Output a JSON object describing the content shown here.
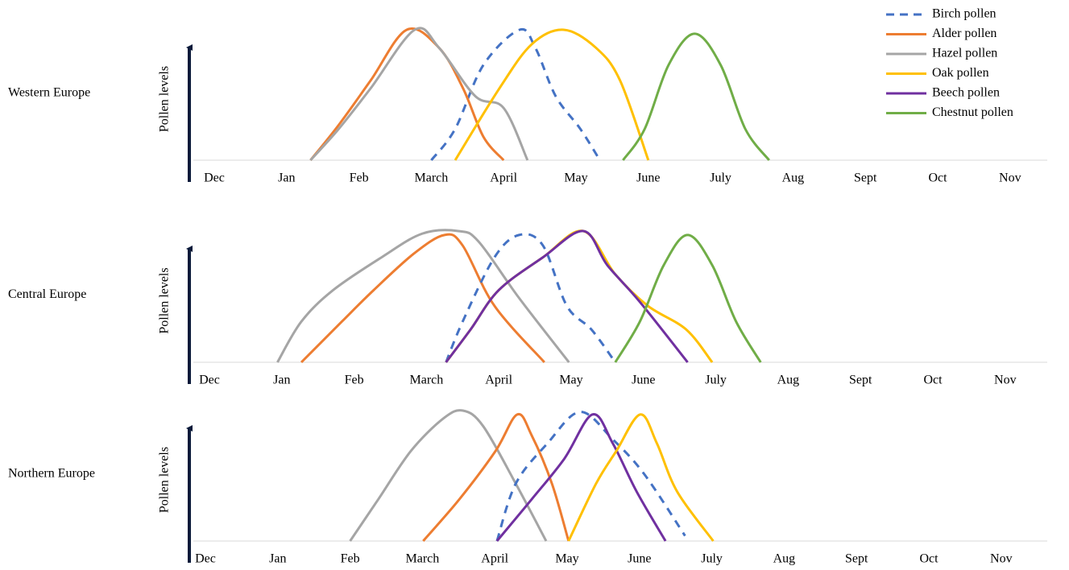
{
  "chart_data": [
    {
      "type": "line",
      "title": "Western Europe",
      "ylabel": "Pollen levels",
      "categories": [
        "Dec",
        "Jan",
        "Feb",
        "March",
        "April",
        "May",
        "June",
        "July",
        "Aug",
        "Sept",
        "Oct",
        "Nov"
      ],
      "ylim": [
        0,
        100
      ],
      "legend": "upper right",
      "series": [
        {
          "name": "Birch pollen",
          "color": "#4472c4",
          "dashed": true,
          "x": [
            3.0,
            3.33,
            3.72,
            4.22,
            4.44,
            4.72,
            5.06,
            5.33
          ],
          "values": [
            0,
            24,
            73,
            100,
            86,
            49,
            24,
            0
          ]
        },
        {
          "name": "Alder pollen",
          "color": "#ed7d31",
          "x": [
            1.33,
            1.72,
            2.16,
            2.66,
            3.11,
            3.44,
            3.72,
            4.0
          ],
          "values": [
            0,
            27,
            61,
            100,
            86,
            55,
            18,
            0
          ]
        },
        {
          "name": "Hazel pollen",
          "color": "#a5a5a5",
          "x": [
            1.33,
            1.72,
            2.16,
            2.77,
            3.11,
            3.61,
            4.0,
            4.33
          ],
          "values": [
            0,
            24,
            55,
            100,
            86,
            49,
            40,
            0
          ]
        },
        {
          "name": "Oak pollen",
          "color": "#ffc000",
          "x": [
            3.33,
            3.94,
            4.39,
            4.83,
            5.28,
            5.61,
            6.0
          ],
          "values": [
            0,
            55,
            89,
            100,
            86,
            61,
            0
          ]
        },
        {
          "name": "Beech pollen",
          "color": "#7030a0",
          "x": [],
          "values": []
        },
        {
          "name": "Chestnut pollen",
          "color": "#70ad47",
          "x": [
            5.65,
            5.95,
            6.28,
            6.64,
            7.0,
            7.34,
            7.67
          ],
          "values": [
            0,
            24,
            73,
            97,
            73,
            24,
            0
          ]
        }
      ]
    },
    {
      "type": "line",
      "title": "Central Europe",
      "ylabel": "Pollen levels",
      "categories": [
        "Dec",
        "Jan",
        "Feb",
        "March",
        "April",
        "May",
        "June",
        "July",
        "Aug",
        "Sept",
        "Oct",
        "Nov"
      ],
      "ylim": [
        0,
        100
      ],
      "series": [
        {
          "color": "#a5a5a5",
          "x": [
            0.94,
            1.27,
            1.71,
            2.38,
            2.94,
            3.44,
            3.72,
            4.28,
            4.97
          ],
          "values": [
            0,
            31,
            55,
            80,
            98,
            100,
            92,
            49,
            0
          ]
        },
        {
          "color": "#ed7d31",
          "x": [
            1.27,
            1.83,
            2.27,
            2.83,
            3.25,
            3.5,
            3.94,
            4.63
          ],
          "values": [
            0,
            31,
            55,
            83,
            97,
            89,
            43,
            0
          ]
        },
        {
          "color": "#4472c4",
          "dashed": true,
          "x": [
            3.27,
            3.5,
            3.94,
            4.28,
            4.61,
            4.94,
            5.28,
            5.61
          ],
          "values": [
            0,
            31,
            80,
            97,
            89,
            43,
            25,
            0
          ]
        },
        {
          "color": "#ffc000",
          "x": [
            3.27,
            3.61,
            4.0,
            4.61,
            5.17,
            5.61,
            6.06,
            6.59,
            6.95
          ],
          "values": [
            0,
            25,
            55,
            80,
            100,
            67,
            43,
            25,
            0
          ]
        },
        {
          "color": "#7030a0",
          "x": [
            3.27,
            3.61,
            4.0,
            4.61,
            5.17,
            5.5,
            5.95,
            6.61
          ],
          "values": [
            0,
            25,
            55,
            80,
            100,
            74,
            46,
            0
          ]
        },
        {
          "color": "#70ad47",
          "x": [
            5.61,
            5.95,
            6.28,
            6.61,
            6.95,
            7.28,
            7.62
          ],
          "values": [
            0,
            31,
            74,
            97,
            74,
            31,
            0
          ]
        }
      ]
    },
    {
      "type": "line",
      "title": "Northern Europe",
      "ylabel": "Pollen levels",
      "categories": [
        "Dec",
        "Jan",
        "Feb",
        "March",
        "April",
        "May",
        "June",
        "July",
        "Aug",
        "Sept",
        "Oct",
        "Nov"
      ],
      "ylim": [
        0,
        100
      ],
      "series": [
        {
          "color": "#a5a5a5",
          "x": [
            2.0,
            2.39,
            2.84,
            3.29,
            3.56,
            3.84,
            4.29,
            4.71
          ],
          "values": [
            0,
            32,
            69,
            94,
            100,
            88,
            44,
            0
          ]
        },
        {
          "color": "#ed7d31",
          "x": [
            3.01,
            3.51,
            4.01,
            4.31,
            4.51,
            4.79,
            5.02
          ],
          "values": [
            0,
            32,
            69,
            97,
            81,
            44,
            0
          ]
        },
        {
          "color": "#4472c4",
          "dashed": true,
          "x": [
            4.03,
            4.29,
            4.73,
            5.18,
            5.63,
            6.07,
            6.63
          ],
          "values": [
            0,
            44,
            75,
            99,
            78,
            51,
            4
          ]
        },
        {
          "color": "#7030a0",
          "x": [
            4.03,
            4.51,
            4.96,
            5.35,
            5.63,
            5.96,
            6.36
          ],
          "values": [
            0,
            32,
            63,
            97,
            75,
            38,
            0
          ]
        },
        {
          "color": "#ffc000",
          "x": [
            5.02,
            5.4,
            5.68,
            6.01,
            6.24,
            6.52,
            7.02
          ],
          "values": [
            0,
            44,
            69,
            97,
            75,
            38,
            0
          ]
        }
      ]
    }
  ]
}
